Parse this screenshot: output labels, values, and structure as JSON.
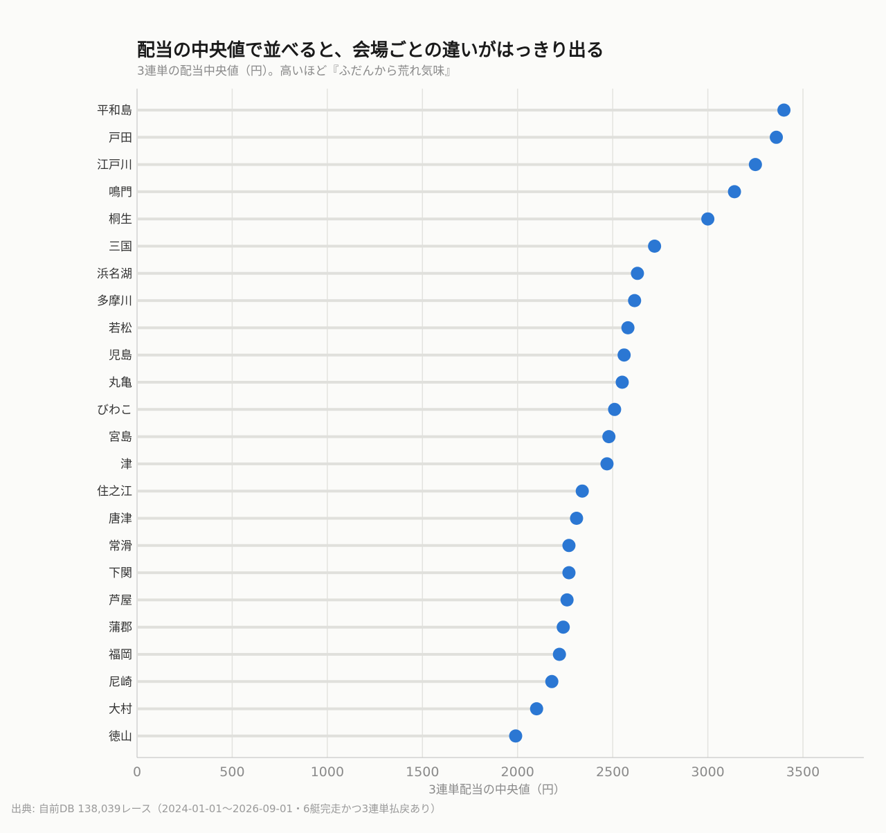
{
  "header": {
    "title": "配当の中央値で並べると、会場ごとの違いがはっきり出る",
    "subtitle": "3連単の配当中央値（円）。高いほど『ふだんから荒れ気味』"
  },
  "footer": {
    "source": "出典: 自前DB 138,039レース（2024-01-01〜2026-09-01・6艇完走かつ3連単払戻あり）"
  },
  "colors": {
    "point": "#2b77d3",
    "stem": "#e0e0dc",
    "grid": "#e3e3df",
    "axis": "#bdbdbd",
    "tick_label": "#8a8a8a",
    "category_label": "#333333"
  },
  "chart_data": {
    "type": "lollipop",
    "title": "配当の中央値で並べると、会場ごとの違いがはっきり出る",
    "subtitle": "3連単の配当中央値（円）。高いほど『ふだんから荒れ気味』",
    "xlabel": "3連単配当の中央値（円）",
    "ylabel": "",
    "xlim": [
      0,
      3820
    ],
    "xticks": [
      0,
      500,
      1000,
      1500,
      2000,
      2500,
      3000,
      3500
    ],
    "grid": "vertical",
    "orientation": "horizontal",
    "categories": [
      "平和島",
      "戸田",
      "江戸川",
      "鳴門",
      "桐生",
      "三国",
      "浜名湖",
      "多摩川",
      "若松",
      "児島",
      "丸亀",
      "びわこ",
      "宮島",
      "津",
      "住之江",
      "唐津",
      "常滑",
      "下関",
      "芦屋",
      "蒲郡",
      "福岡",
      "尼崎",
      "大村",
      "徳山"
    ],
    "values": [
      3400,
      3360,
      3250,
      3140,
      3000,
      2720,
      2630,
      2615,
      2580,
      2560,
      2550,
      2510,
      2480,
      2470,
      2340,
      2310,
      2270,
      2270,
      2260,
      2240,
      2220,
      2180,
      2100,
      1990
    ]
  }
}
